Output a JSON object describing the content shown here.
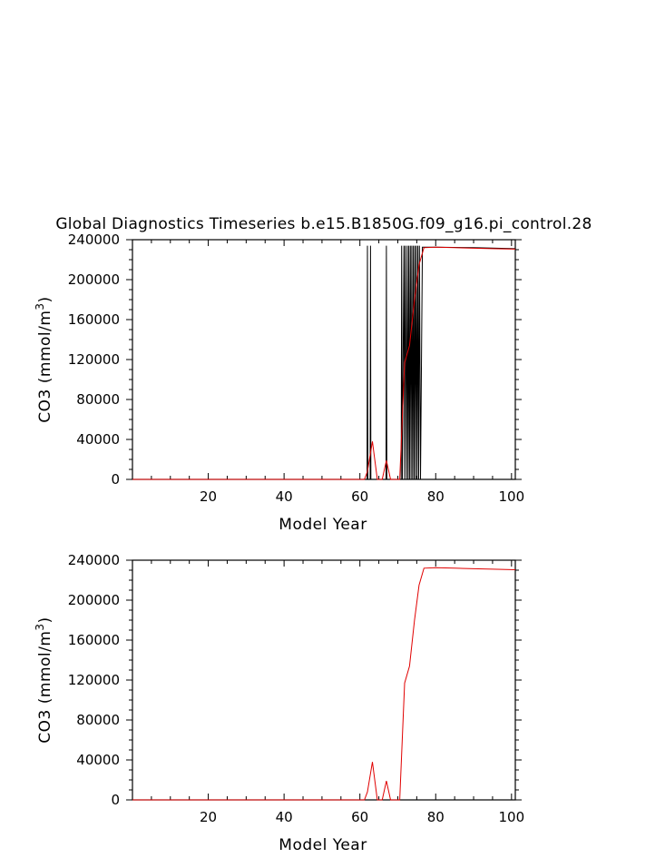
{
  "title": "Global Diagnostics Timeseries b.e15.B1850G.f09_g16.pi_control.28",
  "colors": {
    "series_black": "#000000",
    "series_red": "#e00000",
    "axis": "#000000"
  },
  "chart_data": [
    {
      "type": "line",
      "xlabel": "Model Year",
      "ylabel_main": "CO3 (mmol/m",
      "ylabel_sup": "3",
      "ylabel_close": ")",
      "xlim": [
        0,
        101
      ],
      "ylim": [
        0,
        240000
      ],
      "xticks": [
        20,
        40,
        60,
        80,
        100
      ],
      "yticks": [
        0,
        40000,
        80000,
        120000,
        160000,
        200000,
        240000
      ],
      "series": [
        {
          "color": "#000000",
          "x": [
            0,
            61.9,
            62.0,
            62.1,
            62.7,
            62.8,
            62.9,
            66.9,
            67.0,
            67.1,
            70.9,
            71.0,
            71.2,
            71.6,
            71.8,
            72.0,
            72.3,
            72.5,
            72.7,
            72.9,
            73.1,
            73.3,
            73.5,
            73.7,
            73.9,
            74.1,
            74.3,
            74.5,
            74.7,
            74.9,
            75.1,
            75.3,
            75.5,
            75.7,
            76.0,
            76.5,
            80,
            90,
            101
          ],
          "y": [
            0,
            0,
            234000,
            0,
            0,
            234000,
            0,
            0,
            234000,
            0,
            0,
            234000,
            0,
            234000,
            0,
            234000,
            0,
            234000,
            0,
            234000,
            0,
            234000,
            0,
            234000,
            0,
            234000,
            0,
            234000,
            0,
            234000,
            0,
            234000,
            0,
            234000,
            0,
            232500,
            232500,
            232000,
            231000
          ]
        },
        {
          "color": "#e00000",
          "x": [
            0,
            61.2,
            62.0,
            63.3,
            64.6,
            65.9,
            67.0,
            68.1,
            69.2,
            70.5,
            71.8,
            73.1,
            74.4,
            75.6,
            76.9,
            80,
            85,
            90,
            95,
            101
          ],
          "y": [
            0,
            0,
            8000,
            38000,
            0,
            0,
            19000,
            0,
            0,
            0,
            117000,
            134000,
            180000,
            215000,
            232000,
            232500,
            232000,
            231500,
            231000,
            230500
          ]
        }
      ]
    },
    {
      "type": "line",
      "xlabel": "Model Year",
      "ylabel_main": "CO3 (mmol/m",
      "ylabel_sup": "3",
      "ylabel_close": ")",
      "xlim": [
        0,
        101
      ],
      "ylim": [
        0,
        240000
      ],
      "xticks": [
        20,
        40,
        60,
        80,
        100
      ],
      "yticks": [
        0,
        40000,
        80000,
        120000,
        160000,
        200000,
        240000
      ],
      "series": [
        {
          "color": "#e00000",
          "x": [
            0,
            61.2,
            62.0,
            63.3,
            64.6,
            65.9,
            67.0,
            68.1,
            69.2,
            70.5,
            71.8,
            73.1,
            74.4,
            75.6,
            76.9,
            80,
            85,
            90,
            95,
            101
          ],
          "y": [
            0,
            0,
            8000,
            38000,
            0,
            0,
            19000,
            0,
            0,
            0,
            117000,
            134000,
            180000,
            215000,
            232000,
            232500,
            232000,
            231500,
            231000,
            230500
          ]
        }
      ]
    }
  ]
}
